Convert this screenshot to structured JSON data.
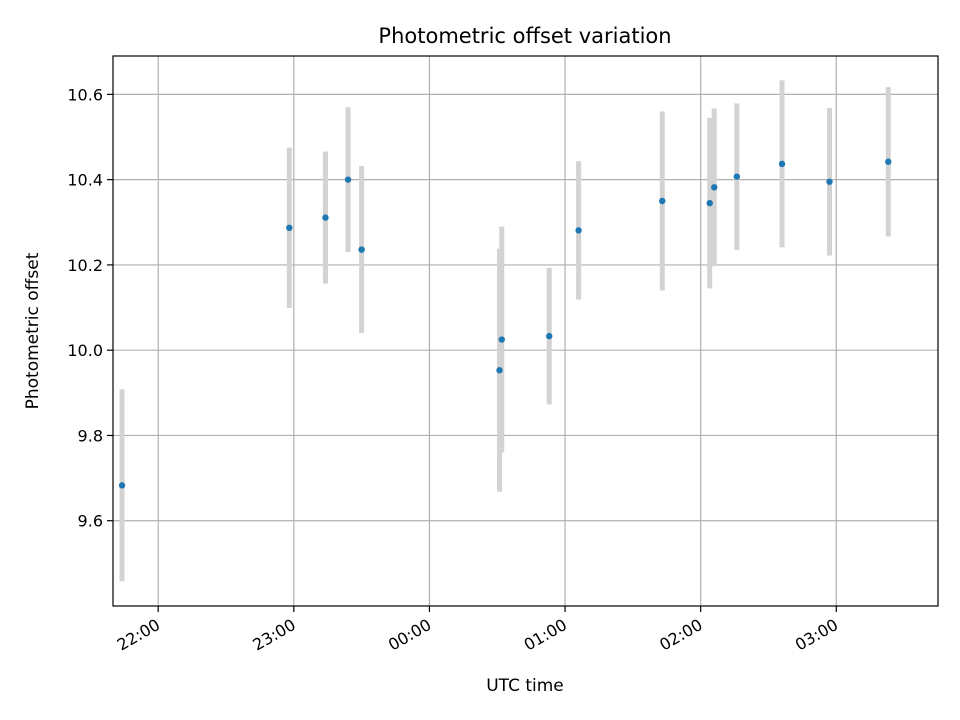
{
  "chart_data": {
    "type": "scatter",
    "title": "Photometric offset variation",
    "xlabel": "UTC time",
    "ylabel": "Photometric offset",
    "grid": true,
    "xlim": [
      "21:40",
      "03:45"
    ],
    "ylim": [
      9.4,
      10.69
    ],
    "x_ticks": [
      "22:00",
      "23:00",
      "00:00",
      "01:00",
      "02:00",
      "03:00"
    ],
    "y_ticks": [
      9.6,
      9.8,
      10.0,
      10.2,
      10.4,
      10.6
    ],
    "colors": {
      "point": "#1f77b4",
      "errorbar": "#d3d3d3",
      "grid": "#b0b0b0"
    },
    "points": [
      {
        "time": "21:44",
        "y": 9.683,
        "yerr": 0.225
      },
      {
        "time": "22:58",
        "y": 10.287,
        "yerr": 0.188
      },
      {
        "time": "23:14",
        "y": 10.311,
        "yerr": 0.155
      },
      {
        "time": "23:24",
        "y": 10.4,
        "yerr": 0.17
      },
      {
        "time": "23:30",
        "y": 10.236,
        "yerr": 0.196
      },
      {
        "time": "00:31",
        "y": 9.953,
        "yerr": 0.285
      },
      {
        "time": "00:32",
        "y": 10.025,
        "yerr": 0.265
      },
      {
        "time": "00:53",
        "y": 10.033,
        "yerr": 0.16
      },
      {
        "time": "01:06",
        "y": 10.281,
        "yerr": 0.162
      },
      {
        "time": "01:43",
        "y": 10.35,
        "yerr": 0.21
      },
      {
        "time": "02:04",
        "y": 10.345,
        "yerr": 0.2
      },
      {
        "time": "02:06",
        "y": 10.382,
        "yerr": 0.185
      },
      {
        "time": "02:16",
        "y": 10.407,
        "yerr": 0.172
      },
      {
        "time": "02:36",
        "y": 10.437,
        "yerr": 0.196
      },
      {
        "time": "02:57",
        "y": 10.395,
        "yerr": 0.173
      },
      {
        "time": "03:23",
        "y": 10.442,
        "yerr": 0.175
      }
    ]
  }
}
